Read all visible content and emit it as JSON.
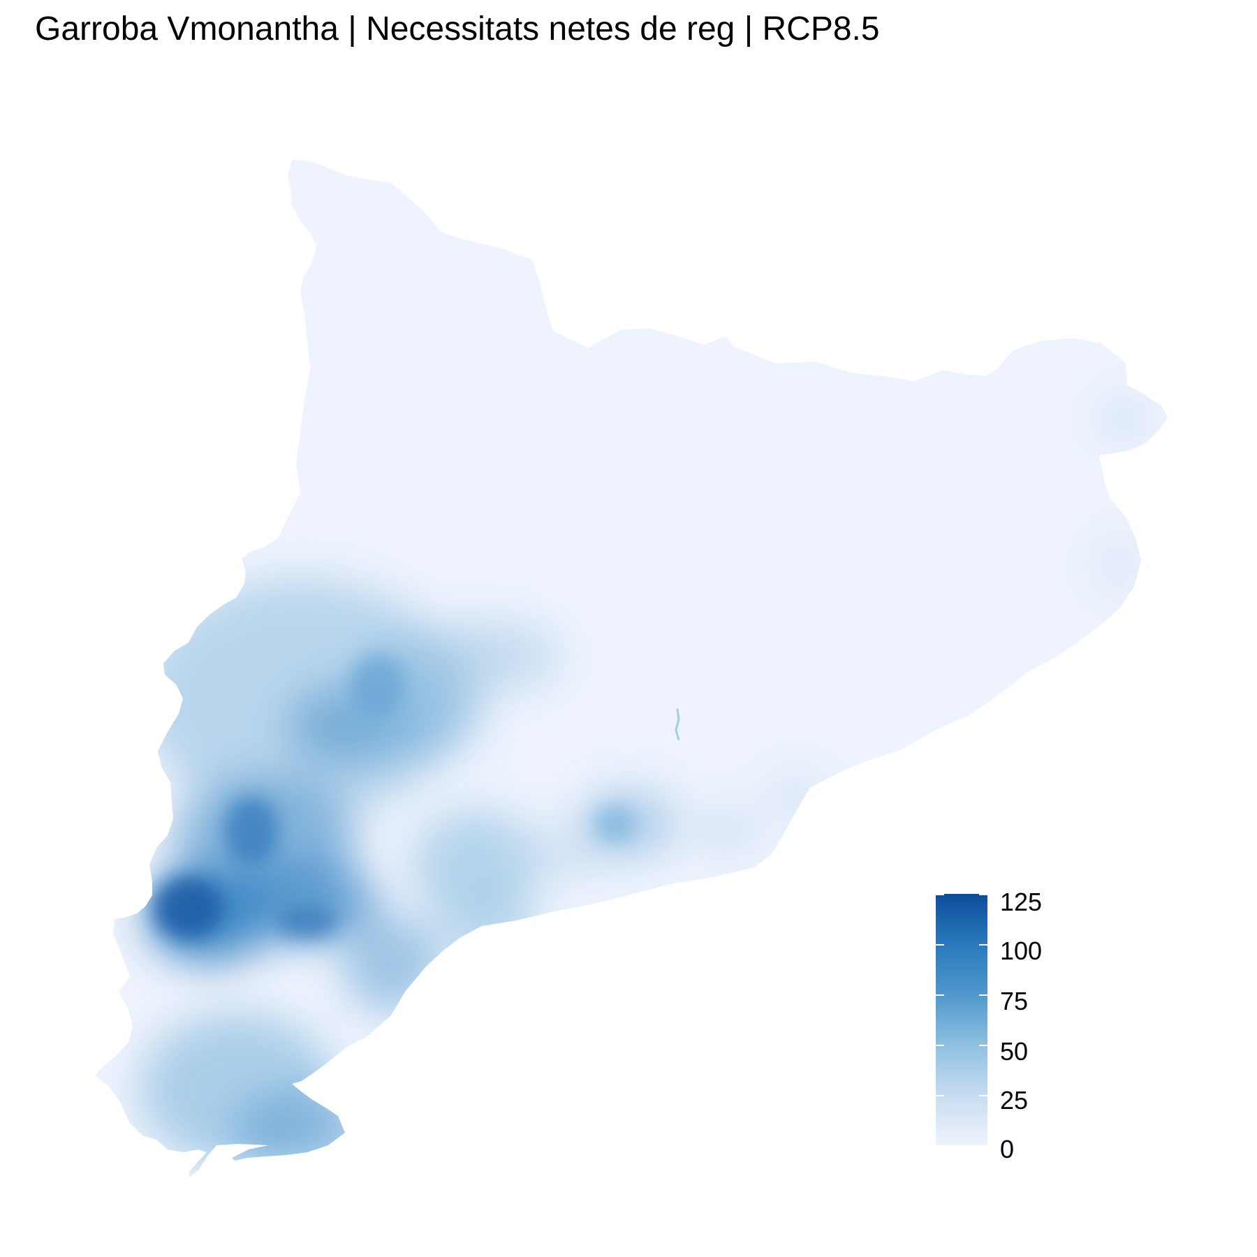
{
  "title": "Garroba Vmonantha | Necessitats netes de reg | RCP8.5",
  "legend": {
    "min": 0,
    "max": 125,
    "ticks": [
      {
        "value": 125,
        "label": "125"
      },
      {
        "value": 100,
        "label": "100"
      },
      {
        "value": 75,
        "label": "75"
      },
      {
        "value": 50,
        "label": "50"
      },
      {
        "value": 25,
        "label": "25"
      },
      {
        "value": 0,
        "label": "0"
      }
    ],
    "colors": {
      "low": "#eef3fd",
      "mid": "#8ec0e0",
      "high": "#0b4e9a"
    }
  }
}
